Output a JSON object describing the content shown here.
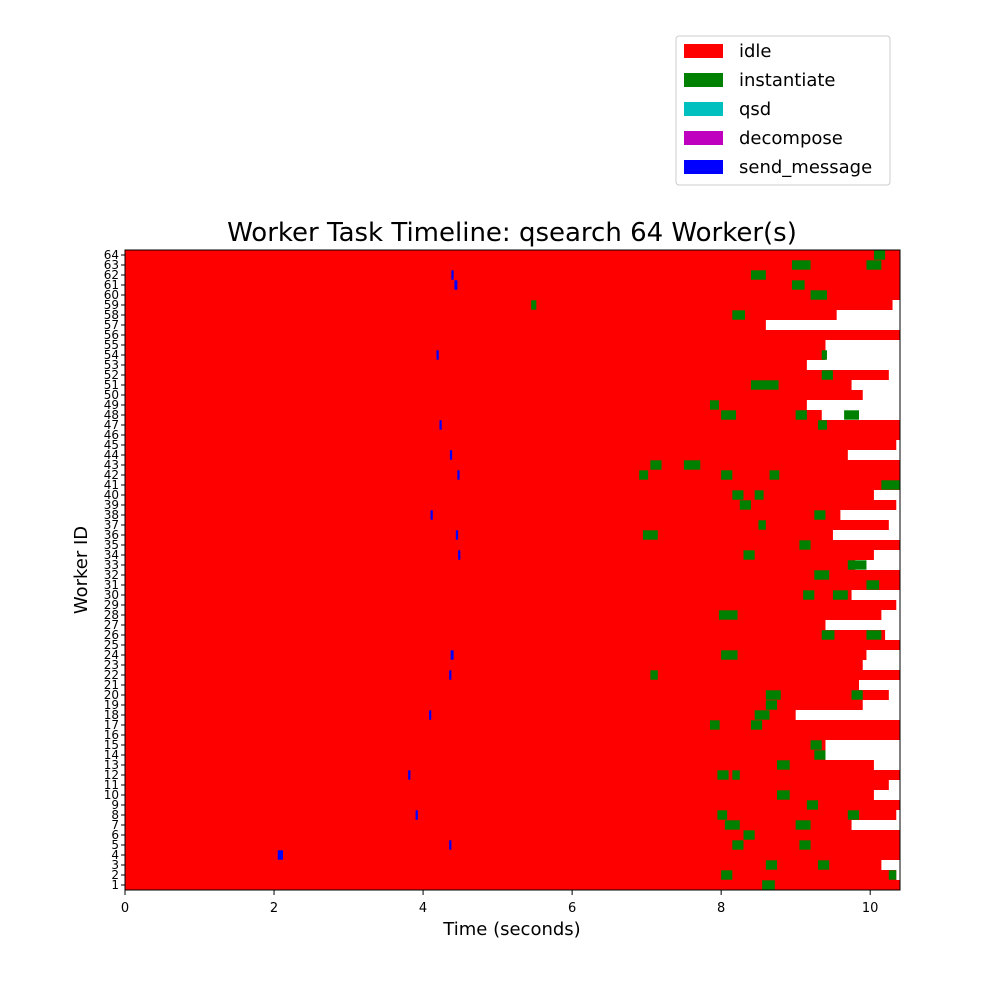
{
  "chart_data": {
    "type": "timeline",
    "title": "Worker Task Timeline: qsearch 64 Worker(s)",
    "xlabel": "Time (seconds)",
    "ylabel": "Worker ID",
    "xlim": [
      0,
      10.4
    ],
    "x_ticks": [
      0,
      2,
      4,
      6,
      8,
      10
    ],
    "y_ticks": [
      1,
      2,
      3,
      4,
      5,
      6,
      7,
      8,
      9,
      10,
      11,
      12,
      13,
      14,
      15,
      16,
      17,
      18,
      19,
      20,
      21,
      22,
      23,
      24,
      25,
      26,
      27,
      28,
      29,
      30,
      31,
      32,
      33,
      34,
      35,
      36,
      37,
      38,
      39,
      40,
      41,
      42,
      43,
      44,
      45,
      46,
      47,
      48,
      49,
      50,
      51,
      52,
      53,
      54,
      55,
      56,
      57,
      58,
      59,
      60,
      61,
      62,
      63,
      64
    ],
    "legend_position": "top-right, above plot",
    "legend": [
      {
        "name": "idle",
        "color": "#ff0000"
      },
      {
        "name": "instantiate",
        "color": "#008000"
      },
      {
        "name": "qsd",
        "color": "#00bfbf"
      },
      {
        "name": "decompose",
        "color": "#bf00bf"
      },
      {
        "name": "send_message",
        "color": "#0000ff"
      }
    ],
    "idle_color": "#ff0000",
    "worker_end_times": [
      10.4,
      10.35,
      10.15,
      10.4,
      10.4,
      10.4,
      9.75,
      10.35,
      10.4,
      10.05,
      10.25,
      10.4,
      10.05,
      9.4,
      9.4,
      10.4,
      10.4,
      9.0,
      9.9,
      10.25,
      9.85,
      10.4,
      9.9,
      9.95,
      10.4,
      10.2,
      9.4,
      10.15,
      10.35,
      9.75,
      10.4,
      10.4,
      9.8,
      10.05,
      10.4,
      9.5,
      10.25,
      9.6,
      10.35,
      10.05,
      10.4,
      10.4,
      10.4,
      9.7,
      10.35,
      10.4,
      10.4,
      9.35,
      9.15,
      9.9,
      9.75,
      10.25,
      9.15,
      9.4,
      9.4,
      10.4,
      8.6,
      9.55,
      10.3,
      10.4,
      10.4,
      10.4,
      10.4,
      10.4
    ],
    "instantiate_segments": [
      {
        "worker": 1,
        "start": 8.55,
        "end": 8.72
      },
      {
        "worker": 2,
        "start": 8.0,
        "end": 8.15
      },
      {
        "worker": 2,
        "start": 10.25,
        "end": 10.35
      },
      {
        "worker": 3,
        "start": 8.6,
        "end": 8.75
      },
      {
        "worker": 3,
        "start": 9.3,
        "end": 9.45
      },
      {
        "worker": 5,
        "start": 8.15,
        "end": 8.3
      },
      {
        "worker": 5,
        "start": 9.05,
        "end": 9.2
      },
      {
        "worker": 6,
        "start": 8.3,
        "end": 8.45
      },
      {
        "worker": 7,
        "start": 8.05,
        "end": 8.25
      },
      {
        "worker": 7,
        "start": 9.0,
        "end": 9.2
      },
      {
        "worker": 8,
        "start": 7.95,
        "end": 8.08
      },
      {
        "worker": 8,
        "start": 9.7,
        "end": 9.85
      },
      {
        "worker": 9,
        "start": 9.15,
        "end": 9.3
      },
      {
        "worker": 10,
        "start": 8.75,
        "end": 8.92
      },
      {
        "worker": 12,
        "start": 7.95,
        "end": 8.1
      },
      {
        "worker": 12,
        "start": 8.15,
        "end": 8.25
      },
      {
        "worker": 13,
        "start": 8.75,
        "end": 8.92
      },
      {
        "worker": 14,
        "start": 9.25,
        "end": 9.4
      },
      {
        "worker": 15,
        "start": 9.2,
        "end": 9.35
      },
      {
        "worker": 17,
        "start": 7.85,
        "end": 7.98
      },
      {
        "worker": 17,
        "start": 8.4,
        "end": 8.55
      },
      {
        "worker": 18,
        "start": 8.45,
        "end": 8.65
      },
      {
        "worker": 19,
        "start": 8.6,
        "end": 8.75
      },
      {
        "worker": 20,
        "start": 8.6,
        "end": 8.8
      },
      {
        "worker": 20,
        "start": 9.75,
        "end": 9.9
      },
      {
        "worker": 22,
        "start": 7.05,
        "end": 7.15
      },
      {
        "worker": 24,
        "start": 8.0,
        "end": 8.22
      },
      {
        "worker": 26,
        "start": 9.35,
        "end": 9.52
      },
      {
        "worker": 26,
        "start": 9.95,
        "end": 10.15
      },
      {
        "worker": 28,
        "start": 7.97,
        "end": 8.22
      },
      {
        "worker": 30,
        "start": 9.1,
        "end": 9.25
      },
      {
        "worker": 30,
        "start": 9.5,
        "end": 9.7
      },
      {
        "worker": 31,
        "start": 9.95,
        "end": 10.12
      },
      {
        "worker": 32,
        "start": 9.25,
        "end": 9.45
      },
      {
        "worker": 33,
        "start": 9.7,
        "end": 9.95
      },
      {
        "worker": 34,
        "start": 8.3,
        "end": 8.45
      },
      {
        "worker": 35,
        "start": 9.05,
        "end": 9.2
      },
      {
        "worker": 36,
        "start": 6.95,
        "end": 7.15
      },
      {
        "worker": 37,
        "start": 8.5,
        "end": 8.6
      },
      {
        "worker": 38,
        "start": 9.25,
        "end": 9.4
      },
      {
        "worker": 39,
        "start": 8.25,
        "end": 8.4
      },
      {
        "worker": 40,
        "start": 8.15,
        "end": 8.3
      },
      {
        "worker": 40,
        "start": 8.45,
        "end": 8.57
      },
      {
        "worker": 41,
        "start": 10.15,
        "end": 10.4
      },
      {
        "worker": 42,
        "start": 6.9,
        "end": 7.02
      },
      {
        "worker": 42,
        "start": 8.0,
        "end": 8.15
      },
      {
        "worker": 42,
        "start": 8.65,
        "end": 8.78
      },
      {
        "worker": 43,
        "start": 7.05,
        "end": 7.2
      },
      {
        "worker": 43,
        "start": 7.5,
        "end": 7.72
      },
      {
        "worker": 47,
        "start": 9.3,
        "end": 9.42
      },
      {
        "worker": 48,
        "start": 8.0,
        "end": 8.2
      },
      {
        "worker": 48,
        "start": 9.0,
        "end": 9.15
      },
      {
        "worker": 48,
        "start": 9.65,
        "end": 9.85
      },
      {
        "worker": 49,
        "start": 7.85,
        "end": 7.97
      },
      {
        "worker": 51,
        "start": 8.4,
        "end": 8.77
      },
      {
        "worker": 52,
        "start": 9.35,
        "end": 9.5
      },
      {
        "worker": 54,
        "start": 9.35,
        "end": 9.42
      },
      {
        "worker": 58,
        "start": 8.15,
        "end": 8.32
      },
      {
        "worker": 59,
        "start": 5.45,
        "end": 5.52
      },
      {
        "worker": 60,
        "start": 9.2,
        "end": 9.42
      },
      {
        "worker": 61,
        "start": 8.95,
        "end": 9.12
      },
      {
        "worker": 62,
        "start": 8.4,
        "end": 8.6
      },
      {
        "worker": 63,
        "start": 8.95,
        "end": 9.2
      },
      {
        "worker": 63,
        "start": 9.95,
        "end": 10.15
      },
      {
        "worker": 64,
        "start": 10.05,
        "end": 10.2
      }
    ],
    "send_message_segments": [
      {
        "worker": 4,
        "start": 2.05,
        "end": 2.12
      },
      {
        "worker": 5,
        "start": 4.35,
        "end": 4.38
      },
      {
        "worker": 8,
        "start": 3.9,
        "end": 3.93
      },
      {
        "worker": 12,
        "start": 3.8,
        "end": 3.83
      },
      {
        "worker": 18,
        "start": 4.08,
        "end": 4.11
      },
      {
        "worker": 22,
        "start": 4.35,
        "end": 4.38
      },
      {
        "worker": 24,
        "start": 4.37,
        "end": 4.41
      },
      {
        "worker": 34,
        "start": 4.47,
        "end": 4.5
      },
      {
        "worker": 36,
        "start": 4.44,
        "end": 4.47
      },
      {
        "worker": 38,
        "start": 4.1,
        "end": 4.13
      },
      {
        "worker": 42,
        "start": 4.46,
        "end": 4.49
      },
      {
        "worker": 44,
        "start": 4.36,
        "end": 4.39
      },
      {
        "worker": 47,
        "start": 4.22,
        "end": 4.25
      },
      {
        "worker": 54,
        "start": 4.18,
        "end": 4.21
      },
      {
        "worker": 61,
        "start": 4.42,
        "end": 4.46
      },
      {
        "worker": 62,
        "start": 4.38,
        "end": 4.41
      }
    ]
  }
}
